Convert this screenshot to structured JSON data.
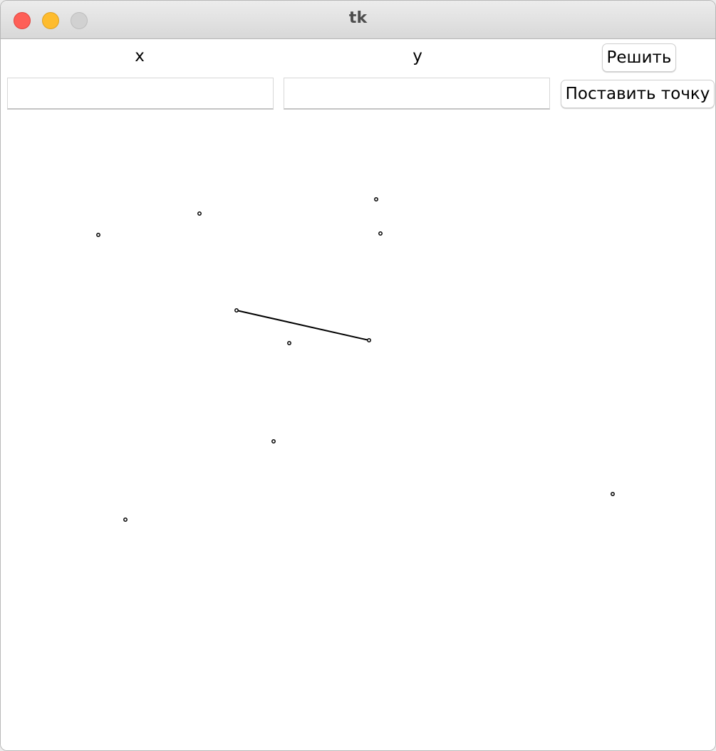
{
  "window": {
    "title": "tk"
  },
  "form": {
    "x_label": "x",
    "y_label": "y",
    "x_value": "",
    "y_value": "",
    "solve_button": "Решить",
    "add_point_button": "Поставить точку"
  },
  "canvas": {
    "point_color": "#000000",
    "line_color": "#000000",
    "points": [
      [
        137,
        329
      ],
      [
        279,
        299
      ],
      [
        527,
        279
      ],
      [
        533,
        327
      ],
      [
        331,
        435
      ],
      [
        517,
        477
      ],
      [
        405,
        481
      ],
      [
        383,
        619
      ],
      [
        175,
        729
      ],
      [
        859,
        693
      ]
    ],
    "segments": [
      [
        [
          331,
          435
        ],
        [
          517,
          477
        ]
      ]
    ]
  }
}
